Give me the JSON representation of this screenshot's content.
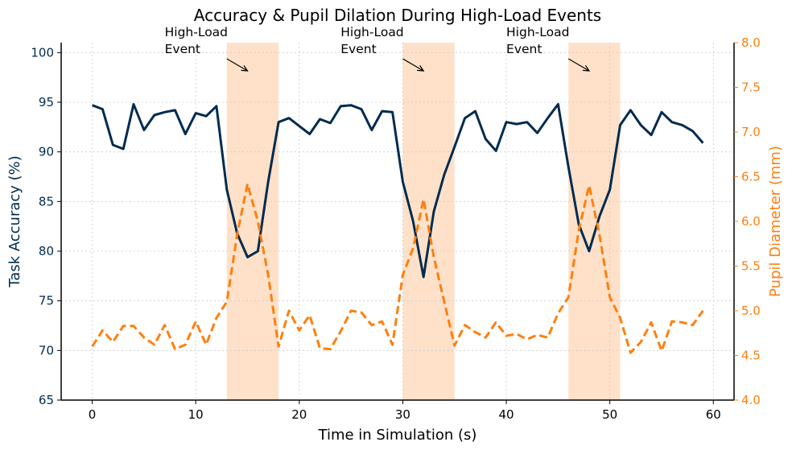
{
  "chart_data": {
    "type": "line",
    "title": "Accuracy & Pupil Dilation During High-Load Events",
    "xlabel": "Time in Simulation (s)",
    "ylabel_left": "Task Accuracy (%)",
    "ylabel_right": "Pupil Diameter (mm)",
    "xlim": [
      -3,
      62
    ],
    "ylim_left": [
      65,
      101
    ],
    "ylim_right": [
      4.0,
      8.0
    ],
    "x_ticks": [
      0,
      10,
      20,
      30,
      40,
      50,
      60
    ],
    "y_left_ticks": [
      65,
      70,
      75,
      80,
      85,
      90,
      95,
      100
    ],
    "y_right_ticks": [
      "4.0",
      "4.5",
      "5.0",
      "5.5",
      "6.0",
      "6.5",
      "7.0",
      "7.5",
      "8.0"
    ],
    "grid": true,
    "colors": {
      "accuracy": "#002b4f",
      "pupil": "#ff7f0e",
      "event_band": "#ffdcbf",
      "right_axis": "#ff7f0e"
    },
    "x": [
      0,
      1,
      2,
      3,
      4,
      5,
      6,
      7,
      8,
      9,
      10,
      11,
      12,
      13,
      14,
      15,
      16,
      17,
      18,
      19,
      20,
      21,
      22,
      23,
      24,
      25,
      26,
      27,
      28,
      29,
      30,
      31,
      32,
      33,
      34,
      35,
      36,
      37,
      38,
      39,
      40,
      41,
      42,
      43,
      44,
      45,
      46,
      47,
      48,
      49,
      50,
      51,
      52,
      53,
      54,
      55,
      56,
      57,
      58,
      59
    ],
    "series": [
      {
        "axis": "left",
        "style": "solid",
        "values": [
          94.7,
          94.3,
          90.7,
          90.3,
          94.8,
          92.2,
          93.7,
          94.0,
          94.2,
          91.8,
          93.9,
          93.6,
          94.6,
          86.2,
          81.8,
          79.4,
          80.0,
          87.0,
          93.0,
          93.4,
          92.6,
          91.8,
          93.3,
          92.9,
          94.6,
          94.7,
          94.3,
          92.2,
          94.1,
          94.0,
          87.0,
          83.0,
          77.4,
          84.0,
          87.7,
          90.5,
          93.4,
          94.1,
          91.3,
          90.1,
          93.0,
          92.8,
          93.0,
          91.9,
          93.4,
          94.8,
          88.5,
          82.7,
          80.0,
          83.5,
          86.2,
          92.7,
          94.2,
          92.7,
          91.7,
          94.0,
          93.0,
          92.7,
          92.1,
          90.9
        ]
      },
      {
        "axis": "right",
        "style": "dashed",
        "values": [
          4.6,
          4.78,
          4.65,
          4.83,
          4.83,
          4.7,
          4.62,
          4.84,
          4.57,
          4.62,
          4.88,
          4.62,
          4.92,
          5.1,
          5.85,
          6.42,
          6.0,
          5.4,
          4.6,
          5.0,
          4.78,
          4.95,
          4.58,
          4.57,
          4.77,
          5.0,
          4.98,
          4.84,
          4.88,
          4.62,
          5.4,
          5.7,
          6.25,
          5.6,
          5.1,
          4.61,
          4.84,
          4.76,
          4.7,
          4.87,
          4.72,
          4.74,
          4.68,
          4.73,
          4.7,
          4.97,
          5.15,
          5.9,
          6.4,
          5.85,
          5.15,
          4.92,
          4.53,
          4.65,
          4.87,
          4.55,
          4.88,
          4.87,
          4.84,
          5.0
        ]
      }
    ],
    "events": [
      {
        "start": 13,
        "end": 18,
        "label_line1": "High-Load",
        "label_line2": "Event",
        "text_x": 7,
        "arrow_from_x": 13,
        "arrow_to_x": 15
      },
      {
        "start": 30,
        "end": 35,
        "label_line1": "High-Load",
        "label_line2": "Event",
        "text_x": 24,
        "arrow_from_x": 30,
        "arrow_to_x": 32
      },
      {
        "start": 46,
        "end": 51,
        "label_line1": "High-Load",
        "label_line2": "Event",
        "text_x": 40,
        "arrow_from_x": 46,
        "arrow_to_x": 48
      }
    ]
  }
}
